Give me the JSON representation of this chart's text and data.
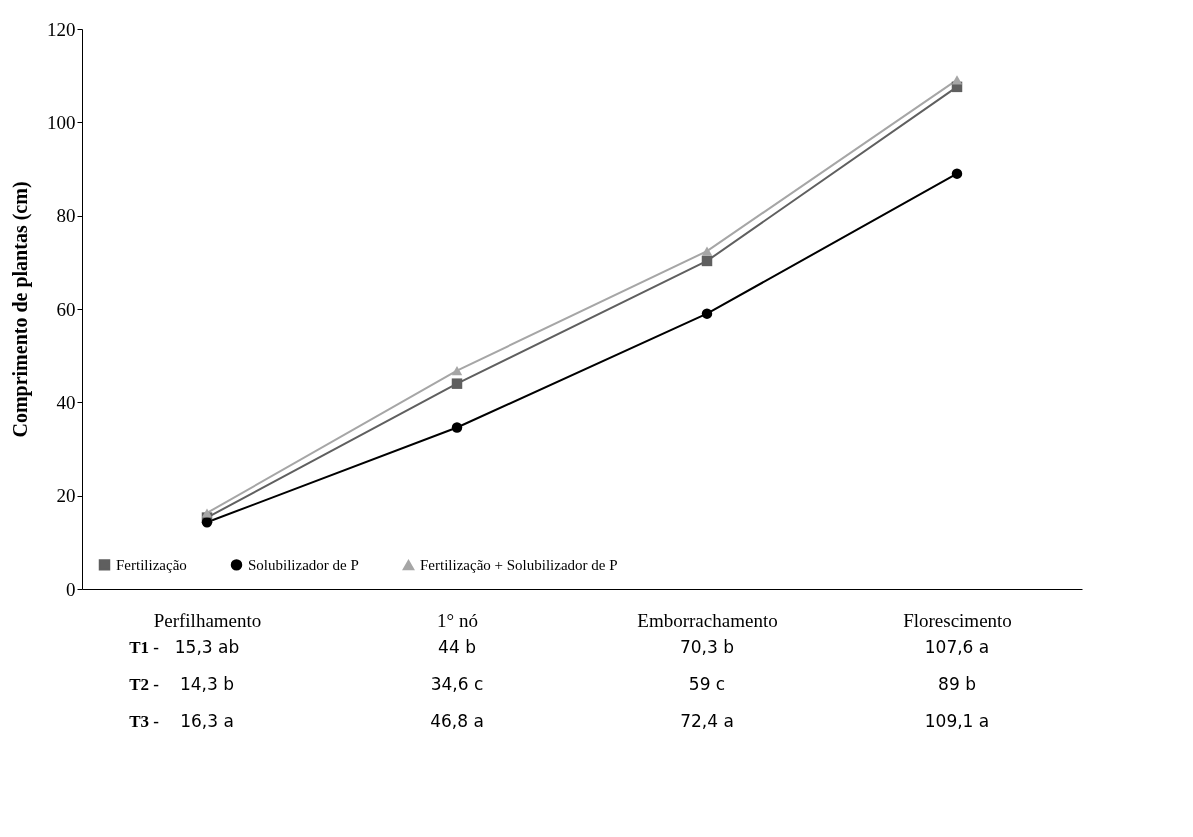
{
  "chart_data": {
    "type": "line",
    "ylabel": "Comprimento de plantas (cm)",
    "categories": [
      "Perfilhamento",
      "1° nó",
      "Emborrachamento",
      "Florescimento"
    ],
    "series": [
      {
        "name": "Fertilização",
        "color": "#5f5f5f",
        "marker": "square",
        "values": [
          15.3,
          44,
          70.3,
          107.6
        ],
        "value_labels": [
          "15,3  ab",
          "44    b",
          "70,3   b",
          "107,6   a"
        ]
      },
      {
        "name": "Solubilizador de P",
        "color": "#000000",
        "marker": "circle",
        "values": [
          14.3,
          34.6,
          59,
          89
        ],
        "value_labels": [
          "14,3   b",
          "34,6   c",
          "59     c",
          "89     b"
        ]
      },
      {
        "name": "Fertilização + Solubilizador de P",
        "color": "#a6a6a6",
        "marker": "triangle",
        "values": [
          16.3,
          46.8,
          72.4,
          109.1
        ],
        "value_labels": [
          "16,3   a",
          "46,8   a",
          "72,4   a",
          "109,1   a"
        ]
      }
    ],
    "annotations": [
      "T1 -",
      "T2 -",
      "T3 -"
    ],
    "ylim": [
      0,
      120
    ],
    "yticks": [
      0,
      20,
      40,
      60,
      80,
      100,
      120
    ],
    "grid": false,
    "legend": "bottom"
  }
}
